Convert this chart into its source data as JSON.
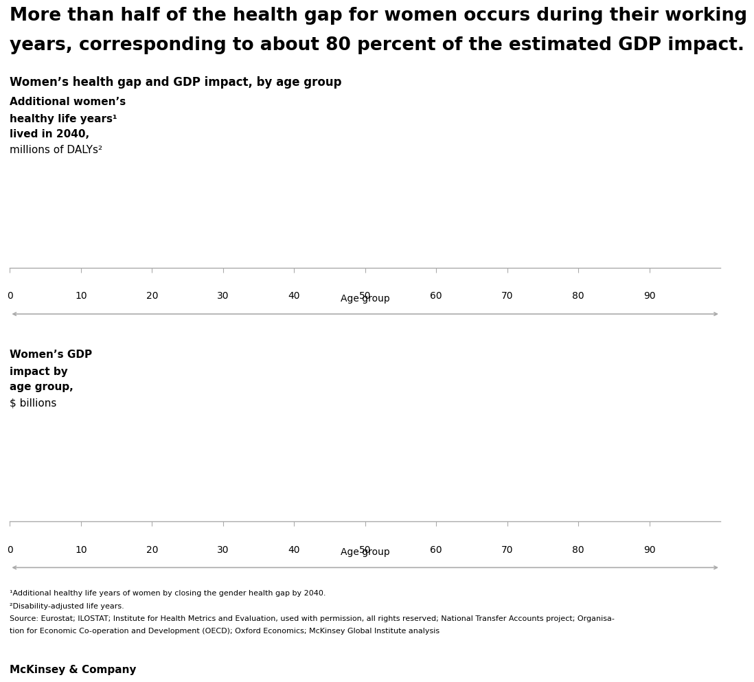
{
  "title_line1": "More than half of the health gap for women occurs during their working",
  "title_line2": "years, corresponding to about 80 percent of the estimated GDP impact.",
  "subtitle": "Women’s health gap and GDP impact, by age group",
  "panel1_ylabel_lines": [
    "Additional women’s",
    "healthy life years¹",
    "lived in 2040,",
    "millions of DALYs²"
  ],
  "panel1_ylabel_bold": [
    true,
    true,
    true,
    false
  ],
  "panel2_ylabel_lines": [
    "Women’s GDP",
    "impact by",
    "age group,",
    "$ billions"
  ],
  "panel2_ylabel_bold": [
    true,
    true,
    true,
    false
  ],
  "xlabel": "Age group",
  "xticks": [
    0,
    10,
    20,
    30,
    40,
    50,
    60,
    70,
    80,
    90
  ],
  "xticklabels": [
    "0",
    "10",
    "20",
    "30",
    "40",
    "50",
    "60",
    "70",
    "80",
    "90"
  ],
  "footnote1": "¹Additional healthy life years of women by closing the gender health gap by 2040.",
  "footnote2": "²Disability-adjusted life years.",
  "footnote3": "Source: Eurostat; ILOSTAT; Institute for Health Metrics and Evaluation, used with permission, all rights reserved; National Transfer Accounts project; Organisa-",
  "footnote4": "tion for Economic Co-operation and Development (OECD); Oxford Economics; McKinsey Global Institute analysis",
  "brand": "McKinsey & Company",
  "bg_color": "#ffffff",
  "axis_color": "#aaaaaa",
  "text_color": "#000000",
  "arrow_color": "#aaaaaa",
  "title_fontsize": 19,
  "subtitle_fontsize": 12,
  "ylabel_fontsize": 11,
  "tick_fontsize": 10,
  "xlabel_fontsize": 10,
  "footnote_fontsize": 8,
  "brand_fontsize": 11
}
